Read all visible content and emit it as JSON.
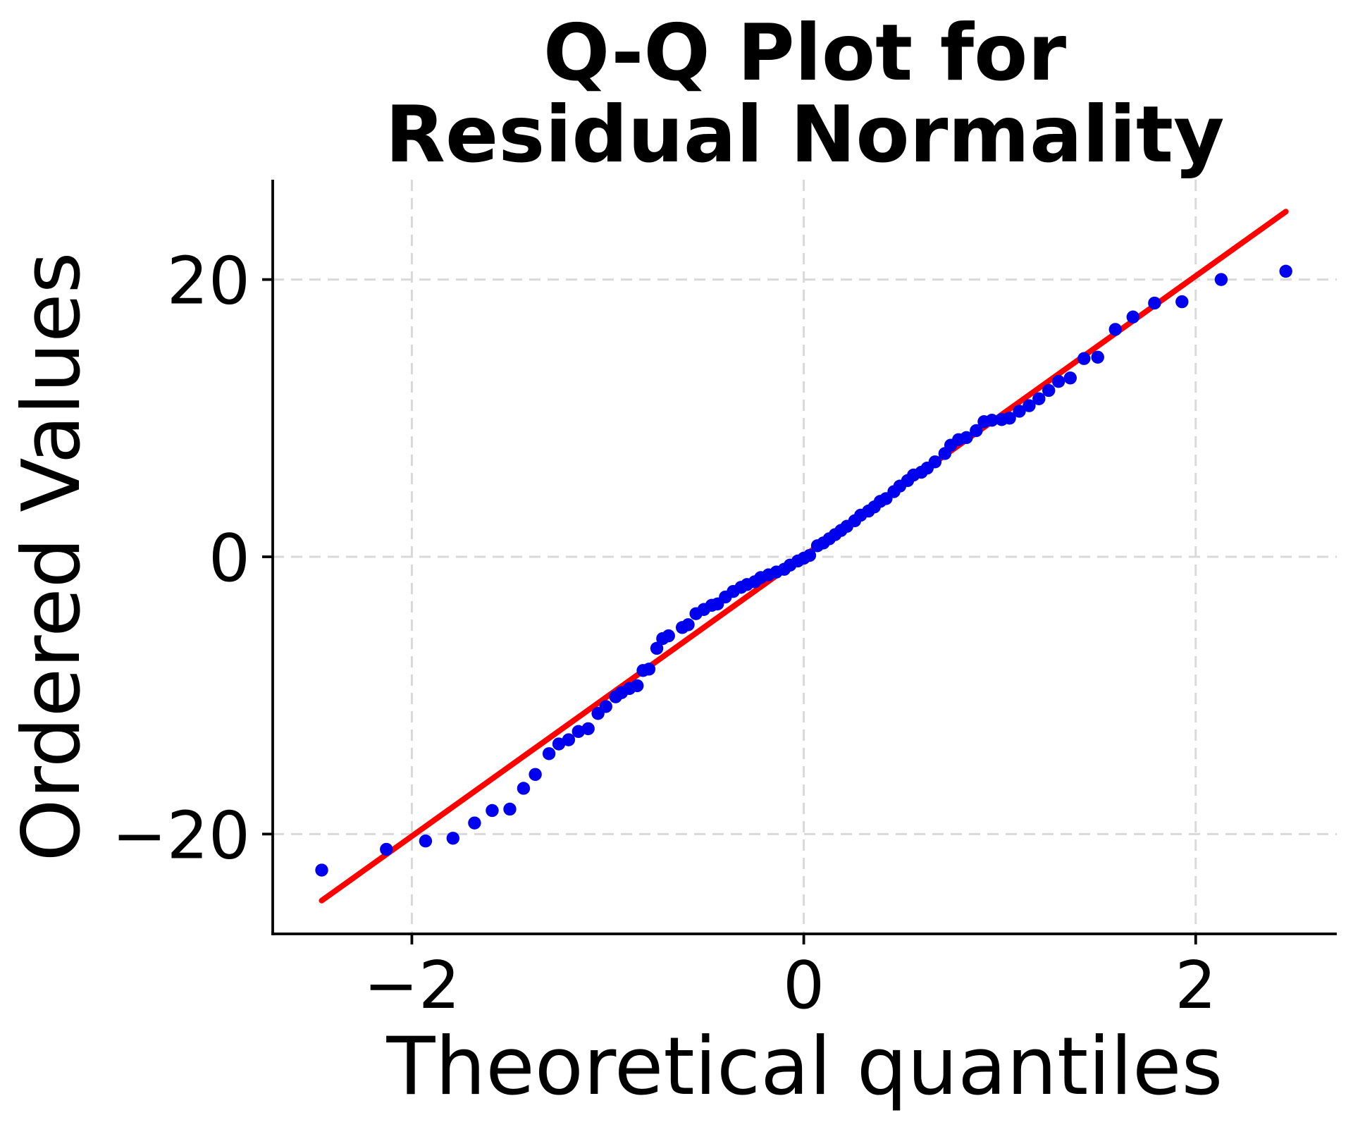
{
  "title": {
    "line1": "Q-Q Plot for",
    "line2": "Residual Normality"
  },
  "chart_data": {
    "type": "scatter",
    "title": "Q-Q Plot for Residual Normality",
    "xlabel": "Theoretical quantiles",
    "ylabel": "Ordered Values",
    "xlim": [
      -2.71,
      2.72
    ],
    "ylim": [
      -27.2,
      27.2
    ],
    "grid": "dashed",
    "legend": "none",
    "x_ticks": [
      {
        "value": -2,
        "label": "−2"
      },
      {
        "value": 0,
        "label": "0"
      },
      {
        "value": 2,
        "label": "2"
      }
    ],
    "y_ticks": [
      {
        "value": -20,
        "label": "−20"
      },
      {
        "value": 0,
        "label": "0"
      },
      {
        "value": 20,
        "label": "20"
      }
    ],
    "colors": {
      "points": "#0000EE",
      "line": "#FF0000",
      "grid": "#D9D9D9",
      "axis": "#000000",
      "background": "#FFFFFF"
    },
    "reference_line": {
      "x1": -2.46,
      "y1": -24.8,
      "x2": 2.46,
      "y2": 24.9
    },
    "points": [
      [
        -2.46,
        -22.6
      ],
      [
        -2.13,
        -21.1
      ],
      [
        -1.93,
        -20.5
      ],
      [
        -1.79,
        -20.3
      ],
      [
        -1.68,
        -19.2
      ],
      [
        -1.59,
        -18.3
      ],
      [
        -1.5,
        -18.2
      ],
      [
        -1.43,
        -16.7
      ],
      [
        -1.37,
        -15.7
      ],
      [
        -1.3,
        -14.2
      ],
      [
        -1.25,
        -13.5
      ],
      [
        -1.2,
        -13.2
      ],
      [
        -1.15,
        -12.6
      ],
      [
        -1.1,
        -12.4
      ],
      [
        -1.05,
        -11.3
      ],
      [
        -1.01,
        -10.8
      ],
      [
        -0.96,
        -10.1
      ],
      [
        -0.93,
        -9.8
      ],
      [
        -0.89,
        -9.5
      ],
      [
        -0.85,
        -9.3
      ],
      [
        -0.82,
        -8.2
      ],
      [
        -0.79,
        -8.1
      ],
      [
        -0.75,
        -6.6
      ],
      [
        -0.72,
        -5.9
      ],
      [
        -0.69,
        -5.7
      ],
      [
        -0.62,
        -5.1
      ],
      [
        -0.59,
        -4.9
      ],
      [
        -0.55,
        -4.1
      ],
      [
        -0.51,
        -3.8
      ],
      [
        -0.47,
        -3.5
      ],
      [
        -0.44,
        -3.4
      ],
      [
        -0.4,
        -2.9
      ],
      [
        -0.36,
        -2.5
      ],
      [
        -0.32,
        -2.2
      ],
      [
        -0.29,
        -2.0
      ],
      [
        -0.25,
        -1.8
      ],
      [
        -0.22,
        -1.5
      ],
      [
        -0.18,
        -1.3
      ],
      [
        -0.14,
        -1.1
      ],
      [
        -0.1,
        -0.9
      ],
      [
        -0.07,
        -0.6
      ],
      [
        -0.03,
        -0.3
      ],
      [
        0.0,
        -0.1
      ],
      [
        0.03,
        0.1
      ],
      [
        0.07,
        0.8
      ],
      [
        0.1,
        1.0
      ],
      [
        0.13,
        1.3
      ],
      [
        0.16,
        1.6
      ],
      [
        0.19,
        1.9
      ],
      [
        0.22,
        2.2
      ],
      [
        0.26,
        2.6
      ],
      [
        0.29,
        3.0
      ],
      [
        0.33,
        3.3
      ],
      [
        0.36,
        3.6
      ],
      [
        0.39,
        4.0
      ],
      [
        0.42,
        4.2
      ],
      [
        0.46,
        4.7
      ],
      [
        0.49,
        5.1
      ],
      [
        0.53,
        5.5
      ],
      [
        0.56,
        5.9
      ],
      [
        0.6,
        6.1
      ],
      [
        0.63,
        6.4
      ],
      [
        0.67,
        6.85
      ],
      [
        0.72,
        7.45
      ],
      [
        0.75,
        8.05
      ],
      [
        0.79,
        8.45
      ],
      [
        0.83,
        8.6
      ],
      [
        0.88,
        9.1
      ],
      [
        0.92,
        9.75
      ],
      [
        0.96,
        9.85
      ],
      [
        1.01,
        9.9
      ],
      [
        1.05,
        10.0
      ],
      [
        1.1,
        10.5
      ],
      [
        1.15,
        10.9
      ],
      [
        1.2,
        11.4
      ],
      [
        1.25,
        12.0
      ],
      [
        1.3,
        12.65
      ],
      [
        1.36,
        12.9
      ],
      [
        1.43,
        14.3
      ],
      [
        1.5,
        14.4
      ],
      [
        1.59,
        16.4
      ],
      [
        1.68,
        17.3
      ],
      [
        1.79,
        18.3
      ],
      [
        1.93,
        18.4
      ],
      [
        2.13,
        20.0
      ],
      [
        2.46,
        20.6
      ]
    ]
  }
}
